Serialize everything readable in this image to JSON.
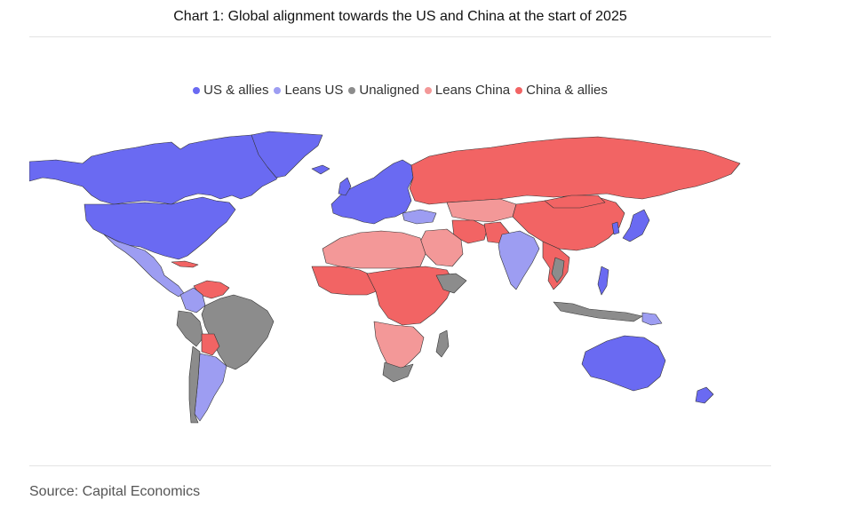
{
  "title": "Chart 1: Global alignment towards the US and China at the start of 2025",
  "legend": [
    {
      "key": "us_allies",
      "label": "US & allies",
      "color": "#6a6af2"
    },
    {
      "key": "leans_us",
      "label": "Leans US",
      "color": "#9d9df2"
    },
    {
      "key": "unaligned",
      "label": "Unaligned",
      "color": "#8c8c8c"
    },
    {
      "key": "leans_china",
      "label": "Leans China",
      "color": "#f39898"
    },
    {
      "key": "china_allies",
      "label": "China & allies",
      "color": "#f26464"
    }
  ],
  "source": "Source: Capital Economics"
}
